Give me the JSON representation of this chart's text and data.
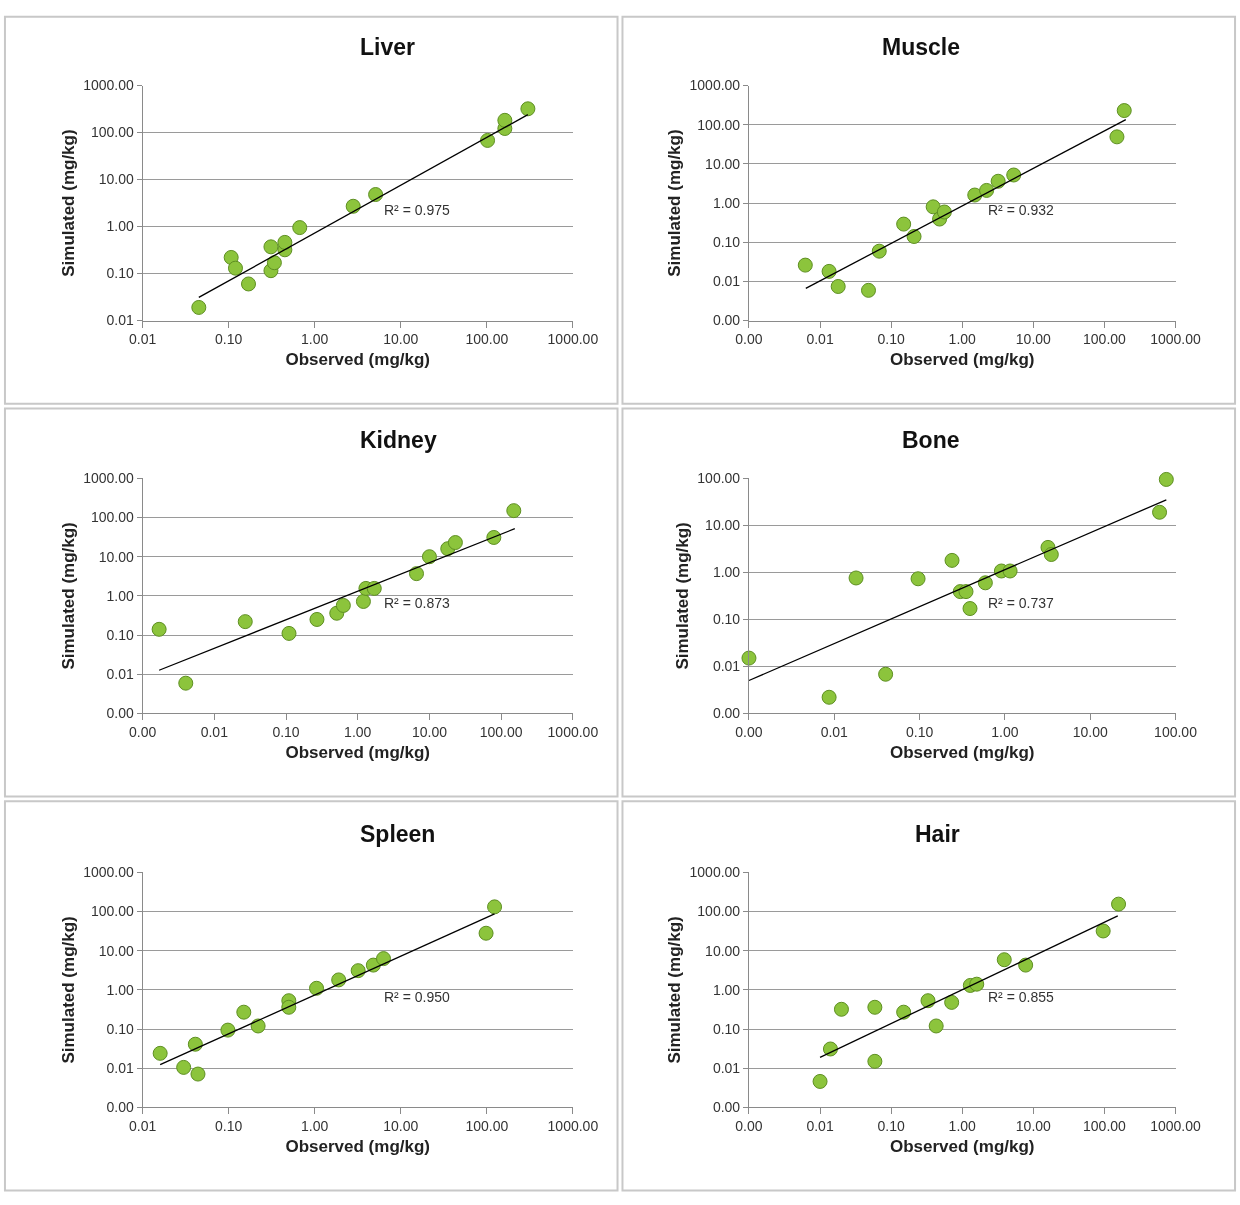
{
  "chart_data": [
    {
      "type": "scatter",
      "title": "Liver",
      "xlabel": "Observed (mg/kg)",
      "ylabel": "Simulated (mg/kg)",
      "log": "xy",
      "grid": "y",
      "marker": "circle",
      "annotations": [
        "R² = 0.975"
      ],
      "xlim": [
        0.01,
        1000
      ],
      "ylim": [
        0.01,
        1000
      ],
      "xticks": [
        {
          "value": 0.01,
          "label": "0.01"
        },
        {
          "value": 0.1,
          "label": "0.10"
        },
        {
          "value": 1,
          "label": "1.00"
        },
        {
          "value": 10,
          "label": "10.00"
        },
        {
          "value": 100,
          "label": "100.00"
        },
        {
          "value": 1000,
          "label": "1000.00"
        }
      ],
      "yticks": [
        {
          "value": 0.01,
          "label": "0.01"
        },
        {
          "value": 0.1,
          "label": "0.10"
        },
        {
          "value": 1,
          "label": "1.00"
        },
        {
          "value": 10,
          "label": "10.00"
        },
        {
          "value": 100,
          "label": "100.00"
        },
        {
          "value": 1000,
          "label": "1000.00"
        }
      ],
      "series": [
        {
          "color": "#8cc43c",
          "x": [
            0.045,
            0.107,
            0.12,
            0.17,
            0.31,
            0.34,
            0.31,
            0.45,
            0.45,
            0.67,
            2.8,
            5.1,
            102,
            162,
            162,
            300
          ],
          "values": [
            0.019,
            0.22,
            0.13,
            0.06,
            0.115,
            0.17,
            0.37,
            0.32,
            0.46,
            0.95,
            2.7,
            4.8,
            68,
            122,
            182,
            320
          ]
        },
        {
          "type": "line",
          "color": "#000000",
          "marker": "none",
          "x": [
            0.045,
            300
          ],
          "values": [
            0.031,
            240
          ]
        }
      ]
    },
    {
      "type": "scatter",
      "title": "Muscle",
      "xlabel": "Observed (mg/kg)",
      "ylabel": "Simulated (mg/kg)",
      "log": "xy",
      "grid": "y",
      "marker": "circle",
      "annotations": [
        "R² = 0.932"
      ],
      "xlim": [
        0.001,
        1000
      ],
      "ylim": [
        0.001,
        1000
      ],
      "xticks": [
        {
          "value": 0.001,
          "label": "0.00"
        },
        {
          "value": 0.01,
          "label": "0.01"
        },
        {
          "value": 0.1,
          "label": "0.10"
        },
        {
          "value": 1,
          "label": "1.00"
        },
        {
          "value": 10,
          "label": "10.00"
        },
        {
          "value": 100,
          "label": "100.00"
        },
        {
          "value": 1000,
          "label": "1000.00"
        }
      ],
      "yticks": [
        {
          "value": 0.001,
          "label": "0.00"
        },
        {
          "value": 0.01,
          "label": "0.01"
        },
        {
          "value": 0.1,
          "label": "0.10"
        },
        {
          "value": 1,
          "label": "1.00"
        },
        {
          "value": 10,
          "label": "10.00"
        },
        {
          "value": 100,
          "label": "100.00"
        },
        {
          "value": 1000,
          "label": "1000.00"
        }
      ],
      "series": [
        {
          "color": "#8cc43c",
          "x": [
            0.0062,
            0.0134,
            0.018,
            0.048,
            0.068,
            0.15,
            0.21,
            0.39,
            0.48,
            0.56,
            1.5,
            2.2,
            3.2,
            5.3,
            150,
            190
          ],
          "values": [
            0.026,
            0.018,
            0.0074,
            0.0059,
            0.059,
            0.29,
            0.14,
            0.8,
            0.39,
            0.59,
            1.6,
            2.1,
            3.6,
            5.2,
            49,
            230
          ]
        },
        {
          "type": "line",
          "color": "#000000",
          "marker": "none",
          "x": [
            0.0063,
            200
          ],
          "values": [
            0.0066,
            135
          ]
        }
      ]
    },
    {
      "type": "scatter",
      "title": "Kidney",
      "xlabel": "Observed (mg/kg)",
      "ylabel": "Simulated (mg/kg)",
      "log": "xy",
      "grid": "y",
      "marker": "circle",
      "annotations": [
        "R² = 0.873"
      ],
      "xlim": [
        0.001,
        1000
      ],
      "ylim": [
        0.001,
        1000
      ],
      "xticks": [
        {
          "value": 0.001,
          "label": "0.00"
        },
        {
          "value": 0.01,
          "label": "0.01"
        },
        {
          "value": 0.1,
          "label": "0.10"
        },
        {
          "value": 1,
          "label": "1.00"
        },
        {
          "value": 10,
          "label": "10.00"
        },
        {
          "value": 100,
          "label": "100.00"
        },
        {
          "value": 1000,
          "label": "1000.00"
        }
      ],
      "yticks": [
        {
          "value": 0.001,
          "label": "0.00"
        },
        {
          "value": 0.01,
          "label": "0.01"
        },
        {
          "value": 0.1,
          "label": "0.10"
        },
        {
          "value": 1,
          "label": "1.00"
        },
        {
          "value": 10,
          "label": "10.00"
        },
        {
          "value": 100,
          "label": "100.00"
        },
        {
          "value": 1000,
          "label": "1000.00"
        }
      ],
      "series": [
        {
          "color": "#8cc43c",
          "x": [
            0.0017,
            0.004,
            0.027,
            0.11,
            0.27,
            0.51,
            0.63,
            1.2,
            1.3,
            1.7,
            6.6,
            10,
            18,
            23,
            79,
            150
          ],
          "values": [
            0.14,
            0.0059,
            0.22,
            0.11,
            0.25,
            0.36,
            0.57,
            0.72,
            1.55,
            1.55,
            3.7,
            10,
            16,
            23,
            31,
            150
          ]
        },
        {
          "type": "line",
          "color": "#000000",
          "marker": "none",
          "x": [
            0.0017,
            155
          ],
          "values": [
            0.0126,
            52
          ]
        }
      ]
    },
    {
      "type": "scatter",
      "title": "Bone",
      "xlabel": "Observed (mg/kg)",
      "ylabel": "Simulated (mg/kg)",
      "log": "xy",
      "grid": "y",
      "marker": "circle",
      "annotations": [
        "R² = 0.737"
      ],
      "xlim": [
        0.001,
        100
      ],
      "ylim": [
        0.001,
        100
      ],
      "xticks": [
        {
          "value": 0.001,
          "label": "0.00"
        },
        {
          "value": 0.01,
          "label": "0.01"
        },
        {
          "value": 0.1,
          "label": "0.10"
        },
        {
          "value": 1,
          "label": "1.00"
        },
        {
          "value": 10,
          "label": "10.00"
        },
        {
          "value": 100,
          "label": "100.00"
        }
      ],
      "yticks": [
        {
          "value": 0.001,
          "label": "0.00"
        },
        {
          "value": 0.01,
          "label": "0.01"
        },
        {
          "value": 0.1,
          "label": "0.10"
        },
        {
          "value": 1,
          "label": "1.00"
        },
        {
          "value": 10,
          "label": "10.00"
        },
        {
          "value": 100,
          "label": "100.00"
        }
      ],
      "series": [
        {
          "color": "#8cc43c",
          "x": [
            0.001,
            0.0087,
            0.018,
            0.04,
            0.096,
            0.24,
            0.3,
            0.35,
            0.39,
            0.59,
            0.91,
            1.15,
            3.2,
            3.5,
            65,
            78
          ],
          "values": [
            0.015,
            0.0022,
            0.76,
            0.0068,
            0.73,
            1.8,
            0.39,
            0.39,
            0.17,
            0.6,
            1.07,
            1.07,
            3.4,
            2.4,
            19,
            95
          ]
        },
        {
          "type": "line",
          "color": "#000000",
          "marker": "none",
          "x": [
            0.001,
            78
          ],
          "values": [
            0.005,
            35
          ]
        }
      ]
    },
    {
      "type": "scatter",
      "title": "Spleen",
      "xlabel": "Observed (mg/kg)",
      "ylabel": "Simulated (mg/kg)",
      "log": "xy",
      "grid": "y",
      "marker": "circle",
      "annotations": [
        "R² = 0.950"
      ],
      "xlim": [
        0.01,
        1000
      ],
      "ylim": [
        0.001,
        1000
      ],
      "xticks": [
        {
          "value": 0.01,
          "label": "0.01"
        },
        {
          "value": 0.1,
          "label": "0.10"
        },
        {
          "value": 1,
          "label": "1.00"
        },
        {
          "value": 10,
          "label": "10.00"
        },
        {
          "value": 100,
          "label": "100.00"
        },
        {
          "value": 1000,
          "label": "1000.00"
        }
      ],
      "yticks": [
        {
          "value": 0.001,
          "label": "0.00"
        },
        {
          "value": 0.01,
          "label": "0.01"
        },
        {
          "value": 0.1,
          "label": "0.10"
        },
        {
          "value": 1,
          "label": "1.00"
        },
        {
          "value": 10,
          "label": "10.00"
        },
        {
          "value": 100,
          "label": "100.00"
        },
        {
          "value": 1000,
          "label": "1000.00"
        }
      ],
      "series": [
        {
          "color": "#8cc43c",
          "x": [
            0.016,
            0.03,
            0.041,
            0.044,
            0.098,
            0.15,
            0.22,
            0.5,
            0.5,
            1.05,
            1.9,
            3.2,
            4.8,
            6.3,
            98,
            123
          ],
          "values": [
            0.024,
            0.0105,
            0.041,
            0.0071,
            0.094,
            0.27,
            0.12,
            0.53,
            0.36,
            1.1,
            1.8,
            3.1,
            4.3,
            6.3,
            28,
            132
          ]
        },
        {
          "type": "line",
          "color": "#000000",
          "marker": "none",
          "x": [
            0.016,
            123
          ],
          "values": [
            0.0123,
            87
          ]
        }
      ]
    },
    {
      "type": "scatter",
      "title": "Hair",
      "xlabel": "Observed (mg/kg)",
      "ylabel": "Simulated (mg/kg)",
      "log": "xy",
      "grid": "y",
      "marker": "circle",
      "annotations": [
        "R² = 0.855"
      ],
      "xlim": [
        0.001,
        1000
      ],
      "ylim": [
        0.001,
        1000
      ],
      "xticks": [
        {
          "value": 0.001,
          "label": "0.00"
        },
        {
          "value": 0.01,
          "label": "0.01"
        },
        {
          "value": 0.1,
          "label": "0.10"
        },
        {
          "value": 1,
          "label": "1.00"
        },
        {
          "value": 10,
          "label": "10.00"
        },
        {
          "value": 100,
          "label": "100.00"
        },
        {
          "value": 1000,
          "label": "1000.00"
        }
      ],
      "yticks": [
        {
          "value": 0.001,
          "label": "0.00"
        },
        {
          "value": 0.01,
          "label": "0.01"
        },
        {
          "value": 0.1,
          "label": "0.10"
        },
        {
          "value": 1,
          "label": "1.00"
        },
        {
          "value": 10,
          "label": "10.00"
        },
        {
          "value": 100,
          "label": "100.00"
        },
        {
          "value": 1000,
          "label": "1000.00"
        }
      ],
      "series": [
        {
          "color": "#8cc43c",
          "x": [
            0.01,
            0.014,
            0.02,
            0.059,
            0.059,
            0.15,
            0.33,
            0.43,
            0.71,
            1.3,
            1.6,
            3.9,
            7.8,
            96,
            158
          ],
          "values": [
            0.0046,
            0.031,
            0.32,
            0.015,
            0.36,
            0.27,
            0.53,
            0.12,
            0.48,
            1.3,
            1.4,
            5.9,
            4.3,
            32,
            155
          ]
        },
        {
          "type": "line",
          "color": "#000000",
          "marker": "none",
          "x": [
            0.01,
            154
          ],
          "values": [
            0.019,
            78
          ]
        }
      ]
    }
  ]
}
